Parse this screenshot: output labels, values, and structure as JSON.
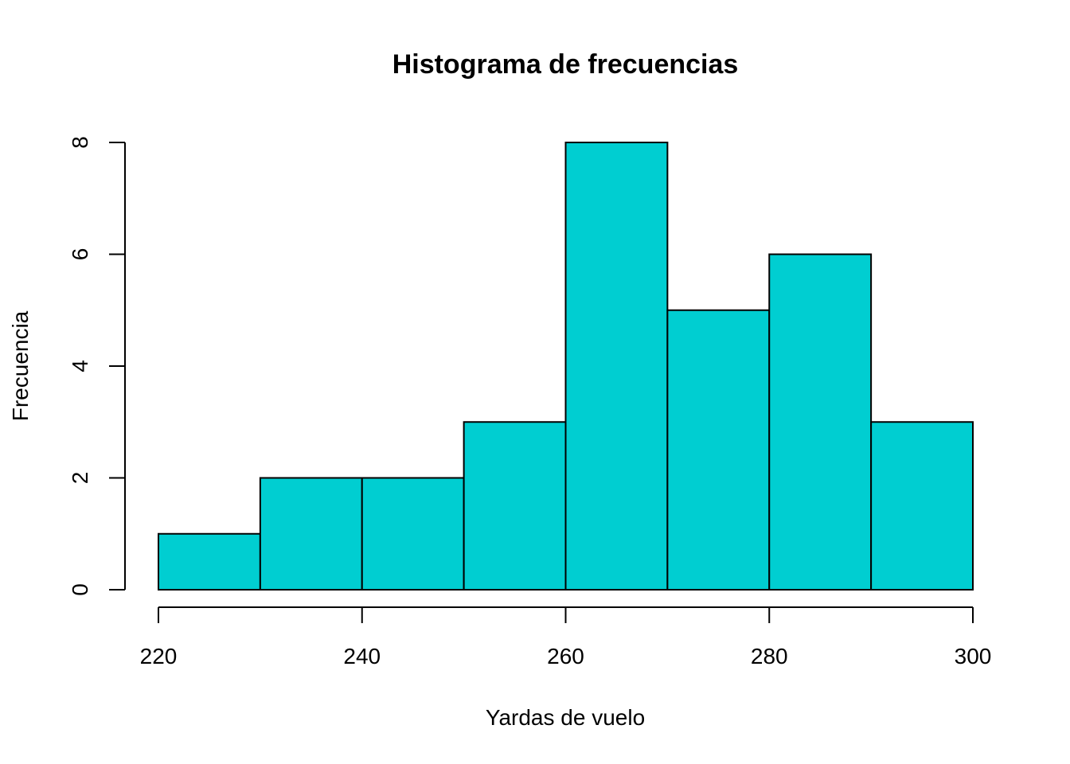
{
  "chart_data": {
    "type": "bar",
    "title": "Histograma de frecuencias",
    "xlabel": "Yardas de vuelo",
    "ylabel": "Frecuencia",
    "bins": [
      {
        "from": 220,
        "to": 230,
        "count": 1
      },
      {
        "from": 230,
        "to": 240,
        "count": 2
      },
      {
        "from": 240,
        "to": 250,
        "count": 2
      },
      {
        "from": 250,
        "to": 260,
        "count": 3
      },
      {
        "from": 260,
        "to": 270,
        "count": 8
      },
      {
        "from": 270,
        "to": 280,
        "count": 5
      },
      {
        "from": 280,
        "to": 290,
        "count": 6
      },
      {
        "from": 290,
        "to": 300,
        "count": 3
      }
    ],
    "xlim": [
      220,
      300
    ],
    "ylim": [
      0,
      8
    ],
    "xticks": [
      "220",
      "240",
      "260",
      "280",
      "300"
    ],
    "yticks": [
      "0",
      "2",
      "4",
      "6",
      "8"
    ],
    "bar_color": "#00CED1",
    "grid": false,
    "legend": "none"
  }
}
